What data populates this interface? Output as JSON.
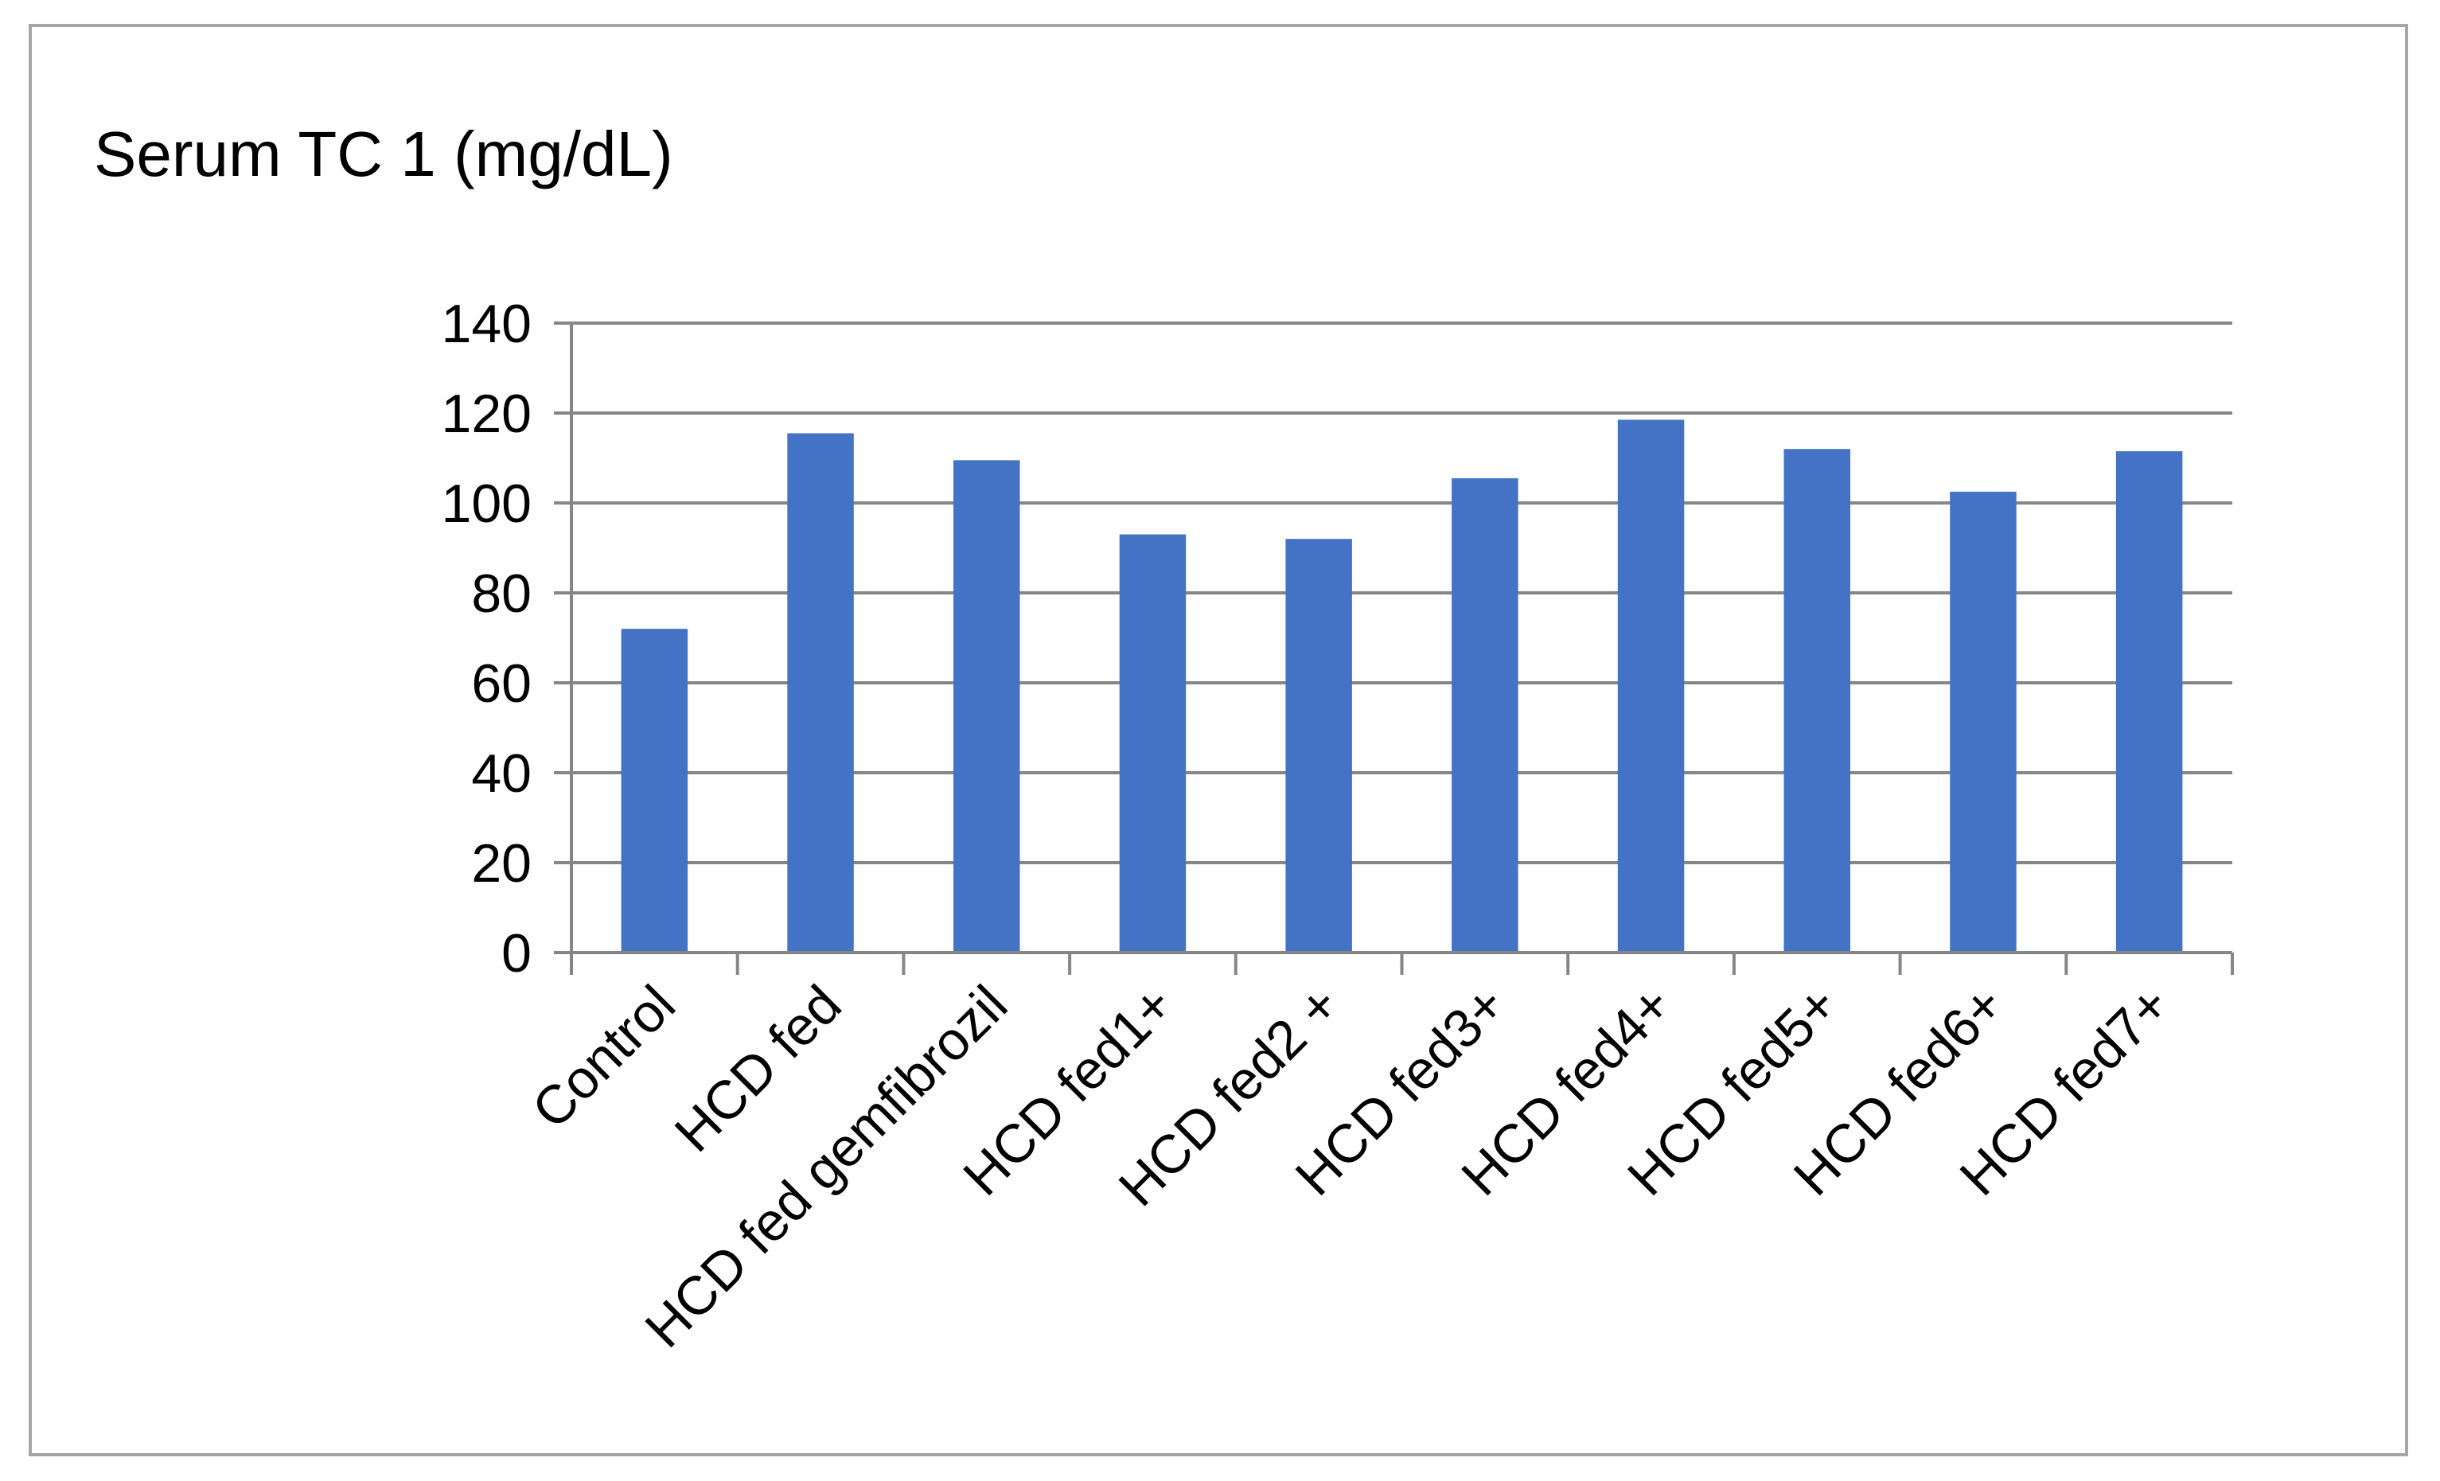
{
  "chart_data": {
    "type": "bar",
    "title": "Serum TC 1 (mg/dL)",
    "xlabel": "",
    "ylabel": "",
    "categories": [
      "Control",
      "HCD fed",
      "HCD fed gemfibrozil",
      "HCD fed1+",
      "HCD fed2 +",
      "HCD fed3+",
      "HCD fed4+",
      "HCD fed5+",
      "HCD fed6+",
      "HCD fed7+"
    ],
    "values": [
      72,
      115.5,
      109.5,
      93,
      92,
      105.5,
      118.5,
      112,
      102.5,
      111.5
    ],
    "ylim": [
      0,
      140
    ],
    "yticks": [
      "0",
      "20",
      "40",
      "60",
      "80",
      "100",
      "120",
      "140"
    ],
    "grid": true,
    "legend": "none",
    "bar_color": "#4472c4",
    "grid_color": "#868686"
  }
}
